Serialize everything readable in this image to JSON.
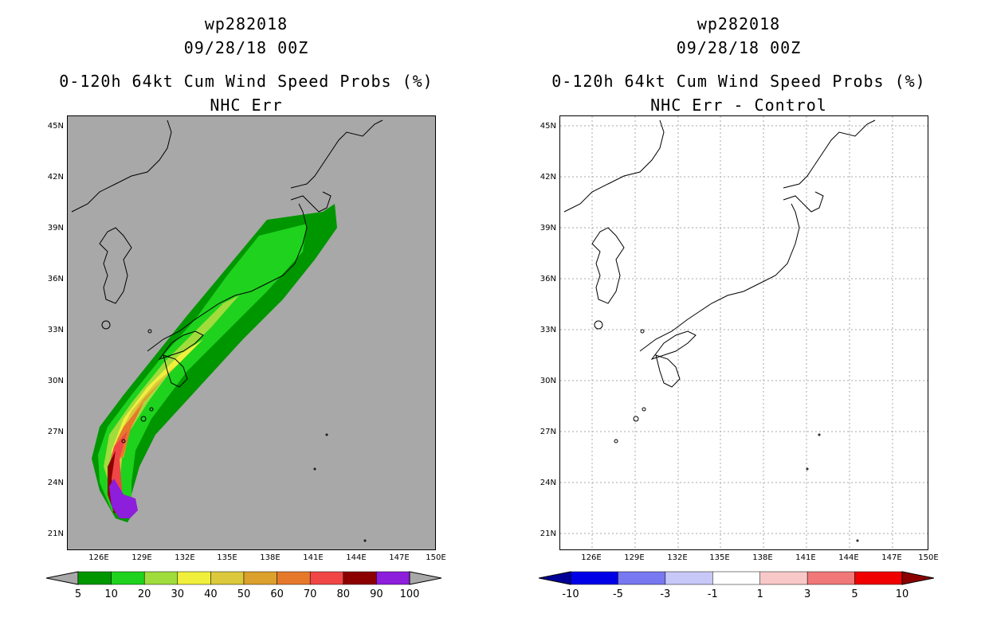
{
  "left": {
    "title_line1": "wp282018",
    "title_line2": "09/28/18 00Z",
    "title_line3": "0-120h 64kt Cum Wind Speed Probs (%)",
    "title_line4": "NHC Err",
    "colorbar": {
      "colors": [
        "#009600",
        "#1ed21e",
        "#a0dc3c",
        "#f0f03c",
        "#dcc83c",
        "#dca02c",
        "#e6782c",
        "#f04646",
        "#8c0000",
        "#8c1edc"
      ],
      "end_colors": [
        "#a8a8a8",
        "#a8a8a8"
      ],
      "labels": [
        "5",
        "10",
        "20",
        "30",
        "40",
        "50",
        "60",
        "70",
        "80",
        "90",
        "100"
      ]
    }
  },
  "right": {
    "title_line1": "wp282018",
    "title_line2": "09/28/18 00Z",
    "title_line3": "0-120h 64kt Cum Wind Speed Probs (%)",
    "title_line4": "NHC Err - Control",
    "colorbar": {
      "colors": [
        "#0000e6",
        "#7878f0",
        "#c8c8f8",
        "#ffffff",
        "#f8c8c8",
        "#f07878",
        "#f00000"
      ],
      "end_colors": [
        "#000096",
        "#8c0000"
      ],
      "labels": [
        "-10",
        "-5",
        "-3",
        "-1",
        "1",
        "3",
        "5",
        "10"
      ]
    }
  },
  "axes": {
    "lat_labels": [
      "45N",
      "42N",
      "39N",
      "36N",
      "33N",
      "30N",
      "27N",
      "24N",
      "21N"
    ],
    "lon_labels": [
      "126E",
      "129E",
      "132E",
      "135E",
      "138E",
      "141E",
      "144E",
      "147E",
      "150E"
    ]
  }
}
